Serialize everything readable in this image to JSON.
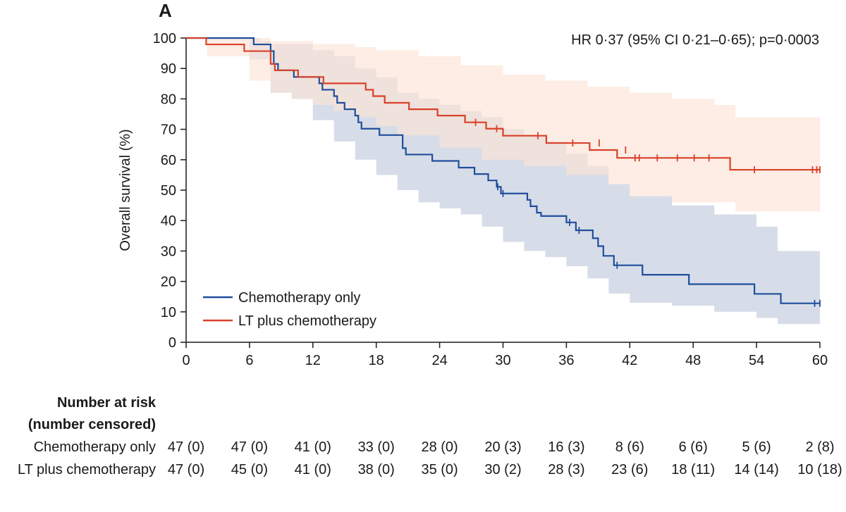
{
  "chart_data": {
    "type": "line",
    "panel_label": "A",
    "annotation": "HR 0·37 (95% CI 0·21–0·65); p=0·0003",
    "ylabel": "Overall survival (%)",
    "xlabel": "",
    "xlim": [
      0,
      60
    ],
    "ylim": [
      0,
      100
    ],
    "x_ticks": [
      0,
      6,
      12,
      18,
      24,
      30,
      36,
      42,
      48,
      54,
      60
    ],
    "y_ticks": [
      0,
      10,
      20,
      30,
      40,
      50,
      60,
      70,
      80,
      90,
      100
    ],
    "grid": false,
    "legend_position": "bottom-left",
    "series": [
      {
        "name": "Chemotherapy only",
        "color": "#1f4e9c",
        "band_color": "#c9d2e0",
        "steps": [
          [
            0,
            100
          ],
          [
            6.4,
            97.9
          ],
          [
            8,
            95.7
          ],
          [
            8.3,
            91.5
          ],
          [
            8.7,
            89.4
          ],
          [
            10.2,
            87.2
          ],
          [
            12.6,
            85.1
          ],
          [
            12.9,
            83
          ],
          [
            14,
            80.9
          ],
          [
            14.3,
            78.7
          ],
          [
            15,
            76.6
          ],
          [
            16,
            74.5
          ],
          [
            16.3,
            72.3
          ],
          [
            16.6,
            70.2
          ],
          [
            18.3,
            68.1
          ],
          [
            20.5,
            63.8
          ],
          [
            20.8,
            61.7
          ],
          [
            23.3,
            59.6
          ],
          [
            25.8,
            57.4
          ],
          [
            27.3,
            55.3
          ],
          [
            28.6,
            53.2
          ],
          [
            29.4,
            51.1
          ],
          [
            29.8,
            48.9
          ],
          [
            32.3,
            46.8
          ],
          [
            32.6,
            44.7
          ],
          [
            33.2,
            42.6
          ],
          [
            33.6,
            41.5
          ],
          [
            36,
            39.4
          ],
          [
            36.9,
            36.8
          ],
          [
            38.5,
            34.2
          ],
          [
            39,
            31.6
          ],
          [
            39.5,
            28.4
          ],
          [
            40.5,
            25.3
          ],
          [
            43.2,
            22.2
          ],
          [
            47.6,
            19.1
          ],
          [
            53.8,
            15.9
          ],
          [
            56.3,
            12.8
          ],
          [
            60,
            12.8
          ]
        ],
        "ci_upper": [
          [
            0,
            100
          ],
          [
            6,
            100
          ],
          [
            7,
            99
          ],
          [
            8,
            98
          ],
          [
            12,
            96
          ],
          [
            14,
            94
          ],
          [
            16,
            90
          ],
          [
            18,
            87
          ],
          [
            20,
            82
          ],
          [
            22,
            80
          ],
          [
            24,
            78
          ],
          [
            26,
            76
          ],
          [
            28,
            74
          ],
          [
            30,
            70
          ],
          [
            32,
            68
          ],
          [
            34,
            66
          ],
          [
            36,
            62
          ],
          [
            38,
            58
          ],
          [
            40,
            52
          ],
          [
            42,
            48
          ],
          [
            46,
            45
          ],
          [
            50,
            42
          ],
          [
            54,
            38
          ],
          [
            56,
            30
          ],
          [
            60,
            30
          ]
        ],
        "ci_lower": [
          [
            0,
            100
          ],
          [
            6,
            93
          ],
          [
            8,
            82
          ],
          [
            10,
            80
          ],
          [
            12,
            73
          ],
          [
            14,
            66
          ],
          [
            16,
            60
          ],
          [
            18,
            55
          ],
          [
            20,
            50
          ],
          [
            22,
            46
          ],
          [
            24,
            44
          ],
          [
            26,
            42
          ],
          [
            28,
            38
          ],
          [
            30,
            33
          ],
          [
            32,
            30
          ],
          [
            34,
            28
          ],
          [
            36,
            25
          ],
          [
            38,
            21
          ],
          [
            40,
            16
          ],
          [
            42,
            13
          ],
          [
            46,
            12
          ],
          [
            50,
            10
          ],
          [
            54,
            8
          ],
          [
            56,
            6
          ],
          [
            60,
            6
          ]
        ],
        "censor_times": [
          [
            29.5,
            51.1
          ],
          [
            30,
            48.9
          ],
          [
            36.3,
            39.4
          ],
          [
            37.2,
            36.8
          ],
          [
            40.8,
            25.3
          ],
          [
            59.5,
            12.8
          ],
          [
            60,
            12.8
          ]
        ]
      },
      {
        "name": "LT plus chemotherapy",
        "color": "#d9412a",
        "band_color": "#fce4d6",
        "steps": [
          [
            0,
            100
          ],
          [
            1.9,
            97.9
          ],
          [
            5.5,
            95.7
          ],
          [
            8,
            91.5
          ],
          [
            8.4,
            89.4
          ],
          [
            10.6,
            87.2
          ],
          [
            13,
            85.1
          ],
          [
            17,
            83
          ],
          [
            17.7,
            80.9
          ],
          [
            18.8,
            78.7
          ],
          [
            21.1,
            76.6
          ],
          [
            23.8,
            74.5
          ],
          [
            26.4,
            72.3
          ],
          [
            28.4,
            70.2
          ],
          [
            30,
            67.9
          ],
          [
            34.1,
            65.5
          ],
          [
            38.2,
            63.2
          ],
          [
            40.8,
            60.6
          ],
          [
            51.5,
            56.7
          ],
          [
            60,
            56.7
          ]
        ],
        "ci_upper": [
          [
            0,
            100
          ],
          [
            2,
            100
          ],
          [
            6,
            100
          ],
          [
            8,
            99
          ],
          [
            12,
            98
          ],
          [
            16,
            97
          ],
          [
            18,
            96
          ],
          [
            22,
            94
          ],
          [
            26,
            91
          ],
          [
            30,
            88
          ],
          [
            34,
            86
          ],
          [
            38,
            84
          ],
          [
            42,
            82
          ],
          [
            46,
            80
          ],
          [
            50,
            78
          ],
          [
            52,
            74
          ],
          [
            60,
            74
          ]
        ],
        "ci_lower": [
          [
            0,
            100
          ],
          [
            2,
            94
          ],
          [
            6,
            86
          ],
          [
            8,
            82
          ],
          [
            10,
            80
          ],
          [
            12,
            78
          ],
          [
            14,
            76
          ],
          [
            16,
            74
          ],
          [
            18,
            71
          ],
          [
            20,
            68
          ],
          [
            24,
            64
          ],
          [
            28,
            60
          ],
          [
            32,
            58
          ],
          [
            36,
            55
          ],
          [
            40,
            52
          ],
          [
            42,
            48
          ],
          [
            46,
            46
          ],
          [
            52,
            43
          ],
          [
            60,
            43
          ]
        ],
        "censor_times": [
          [
            27.4,
            72.3
          ],
          [
            29.4,
            70.2
          ],
          [
            33.3,
            67.9
          ],
          [
            36.6,
            65.5
          ],
          [
            39.1,
            65.5
          ],
          [
            41.6,
            63.2
          ],
          [
            42.5,
            60.6
          ],
          [
            42.9,
            60.6
          ],
          [
            44.6,
            60.6
          ],
          [
            46.5,
            60.6
          ],
          [
            48.1,
            60.6
          ],
          [
            49.5,
            60.6
          ],
          [
            53.8,
            56.7
          ],
          [
            59.3,
            56.7
          ],
          [
            59.7,
            56.7
          ],
          [
            60,
            56.7
          ]
        ]
      }
    ]
  },
  "risk_table": {
    "title_line1": "Number at risk",
    "title_line2": "(number censored)",
    "times": [
      0,
      6,
      12,
      18,
      24,
      30,
      36,
      42,
      48,
      54,
      60
    ],
    "rows": [
      {
        "label": "Chemotherapy only",
        "cells": [
          "47 (0)",
          "47 (0)",
          "41 (0)",
          "33 (0)",
          "28 (0)",
          "20 (3)",
          "16 (3)",
          "8 (6)",
          "6 (6)",
          "5 (6)",
          "2 (8)"
        ]
      },
      {
        "label": "LT plus chemotherapy",
        "cells": [
          "47 (0)",
          "45 (0)",
          "41 (0)",
          "38 (0)",
          "35 (0)",
          "30 (2)",
          "28 (3)",
          "23 (6)",
          "18 (11)",
          "14 (14)",
          "10 (18)"
        ]
      }
    ]
  }
}
